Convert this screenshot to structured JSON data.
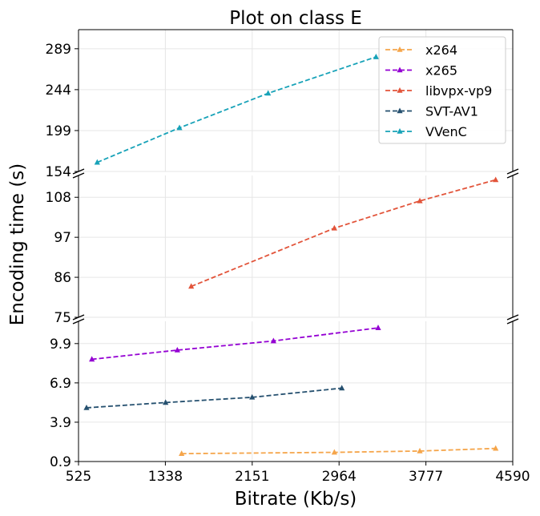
{
  "chart_data": {
    "type": "line",
    "title": "Plot on class E",
    "xlabel": "Bitrate (Kb/s)",
    "ylabel": "Encoding time (s)",
    "xlim": [
      525,
      4590
    ],
    "x_ticks": [
      "525",
      "1338",
      "2151",
      "2964",
      "3777",
      "4590"
    ],
    "grid": true,
    "legend_position": "top-right",
    "panels": [
      {
        "name": "top",
        "ylim": [
          154,
          310
        ],
        "y_ticks": [
          "154",
          "199",
          "244",
          "289"
        ]
      },
      {
        "name": "middle",
        "ylim": [
          75,
          114
        ],
        "y_ticks": [
          "75",
          "86",
          "97",
          "108"
        ]
      },
      {
        "name": "bottom",
        "ylim": [
          0.9,
          11.6
        ],
        "y_ticks": [
          "0.9",
          "3.9",
          "6.9",
          "9.9"
        ]
      }
    ],
    "series": [
      {
        "name": "x264",
        "color": "#f5a54a",
        "panel": "bottom",
        "x": [
          1490,
          2920,
          3720,
          4430
        ],
        "y": [
          1.5,
          1.6,
          1.7,
          1.9
        ]
      },
      {
        "name": "x265",
        "color": "#9400d3",
        "panel": "bottom",
        "x": [
          650,
          1450,
          2350,
          3330
        ],
        "y": [
          8.7,
          9.4,
          10.1,
          11.1
        ]
      },
      {
        "name": "libvpx-vp9",
        "color": "#e2543a",
        "panel": "middle",
        "x": [
          1580,
          2920,
          3720,
          4430
        ],
        "y": [
          83.5,
          99.5,
          107.0,
          112.8
        ]
      },
      {
        "name": "SVT-AV1",
        "color": "#25506f",
        "panel": "bottom",
        "x": [
          600,
          1340,
          2150,
          2990
        ],
        "y": [
          5.0,
          5.4,
          5.8,
          6.5
        ]
      },
      {
        "name": "VVenC",
        "color": "#17a2b8",
        "panel": "top",
        "x": [
          700,
          1470,
          2300,
          3310
        ],
        "y": [
          164,
          202,
          240,
          280
        ]
      }
    ]
  }
}
